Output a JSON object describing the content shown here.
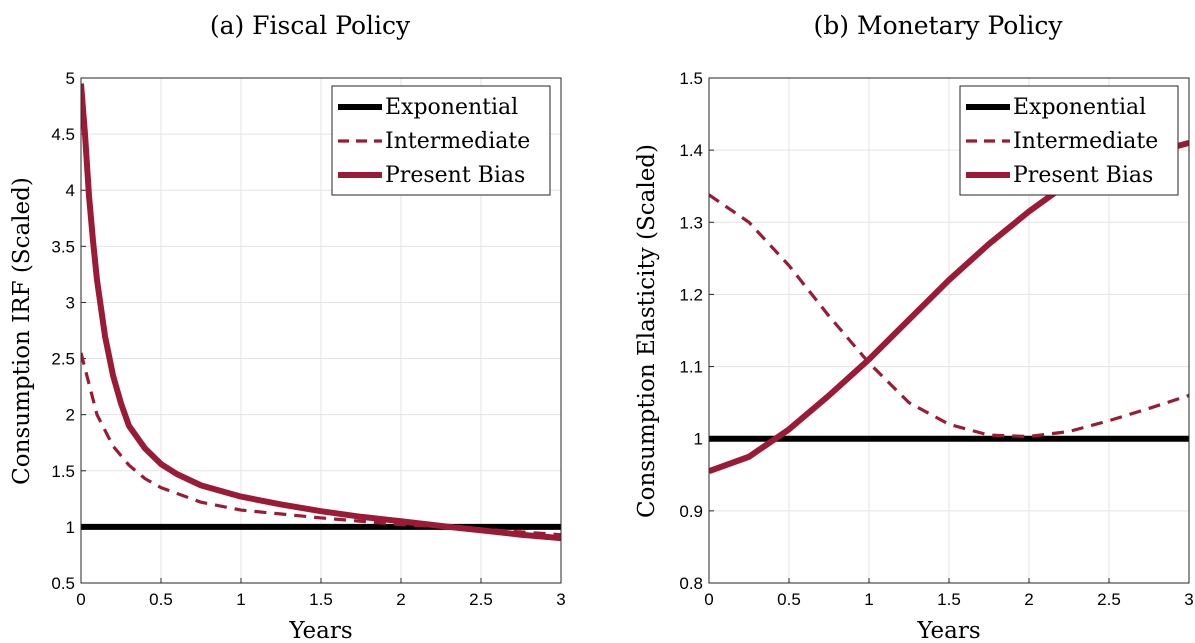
{
  "colors": {
    "exponential": "#000000",
    "present_bias": "#9b1a36",
    "intermediate": "#9b1a36"
  },
  "chart_data": [
    {
      "type": "line",
      "title": "(a) Fiscal Policy",
      "xlabel": "Years",
      "ylabel": "Consumption IRF (Scaled)",
      "xlim": [
        0,
        3
      ],
      "ylim": [
        0.5,
        5
      ],
      "xticks": [
        0,
        0.5,
        1,
        1.5,
        2,
        2.5,
        3
      ],
      "xtick_labels": [
        "0",
        "0.5",
        "1",
        "1.5",
        "2",
        "2.5",
        "3"
      ],
      "yticks": [
        0.5,
        1,
        1.5,
        2,
        2.5,
        3,
        3.5,
        4,
        4.5,
        5
      ],
      "ytick_labels": [
        "0.5",
        "1",
        "1.5",
        "2",
        "2.5",
        "3",
        "3.5",
        "4",
        "4.5",
        "5"
      ],
      "grid": true,
      "legend_position": "top-right",
      "series": [
        {
          "name": "Exponential",
          "style": "solid-thick-black",
          "x": [
            0,
            3
          ],
          "y": [
            1.0,
            1.0
          ]
        },
        {
          "name": "Intermediate",
          "style": "dashed",
          "x": [
            0,
            0.1,
            0.2,
            0.3,
            0.4,
            0.5,
            0.75,
            1.0,
            1.5,
            2.0,
            2.3,
            2.5,
            3.0
          ],
          "y": [
            2.55,
            2.0,
            1.72,
            1.55,
            1.43,
            1.35,
            1.22,
            1.15,
            1.08,
            1.02,
            1.0,
            0.98,
            0.93
          ]
        },
        {
          "name": "Present Bias",
          "style": "solid-thick",
          "x": [
            0,
            0.025,
            0.05,
            0.075,
            0.1,
            0.15,
            0.2,
            0.25,
            0.3,
            0.4,
            0.5,
            0.6,
            0.75,
            1.0,
            1.25,
            1.5,
            1.75,
            2.0,
            2.3,
            2.5,
            2.75,
            3.0
          ],
          "y": [
            4.95,
            4.5,
            3.95,
            3.55,
            3.2,
            2.7,
            2.35,
            2.1,
            1.9,
            1.7,
            1.56,
            1.47,
            1.37,
            1.27,
            1.2,
            1.14,
            1.09,
            1.05,
            1.0,
            0.97,
            0.93,
            0.9
          ]
        }
      ]
    },
    {
      "type": "line",
      "title": "(b) Monetary Policy",
      "xlabel": "Years",
      "ylabel": "Consumption Elasticity (Scaled)",
      "xlim": [
        0,
        3
      ],
      "ylim": [
        0.8,
        1.5
      ],
      "xticks": [
        0,
        0.5,
        1,
        1.5,
        2,
        2.5,
        3
      ],
      "xtick_labels": [
        "0",
        "0.5",
        "1",
        "1.5",
        "2",
        "2.5",
        "3"
      ],
      "yticks": [
        0.8,
        0.9,
        1.0,
        1.1,
        1.2,
        1.3,
        1.4,
        1.5
      ],
      "ytick_labels": [
        "0.8",
        "0.9",
        "1",
        "1.1",
        "1.2",
        "1.3",
        "1.4",
        "1.5"
      ],
      "grid": true,
      "legend_position": "top-right",
      "series": [
        {
          "name": "Exponential",
          "style": "solid-thick-black",
          "x": [
            0,
            3
          ],
          "y": [
            1.0,
            1.0
          ]
        },
        {
          "name": "Intermediate",
          "style": "dashed",
          "x": [
            0,
            0.25,
            0.5,
            0.75,
            1.0,
            1.25,
            1.5,
            1.75,
            2.0,
            2.25,
            2.5,
            2.75,
            3.0
          ],
          "y": [
            1.338,
            1.3,
            1.24,
            1.17,
            1.105,
            1.05,
            1.02,
            1.005,
            1.003,
            1.01,
            1.025,
            1.042,
            1.06
          ]
        },
        {
          "name": "Present Bias",
          "style": "solid-thick",
          "x": [
            0,
            0.25,
            0.5,
            0.75,
            1.0,
            1.25,
            1.5,
            1.75,
            2.0,
            2.25,
            2.5,
            2.75,
            3.0
          ],
          "y": [
            0.955,
            0.975,
            1.013,
            1.06,
            1.11,
            1.165,
            1.22,
            1.27,
            1.315,
            1.355,
            1.38,
            1.395,
            1.41
          ]
        }
      ]
    }
  ]
}
